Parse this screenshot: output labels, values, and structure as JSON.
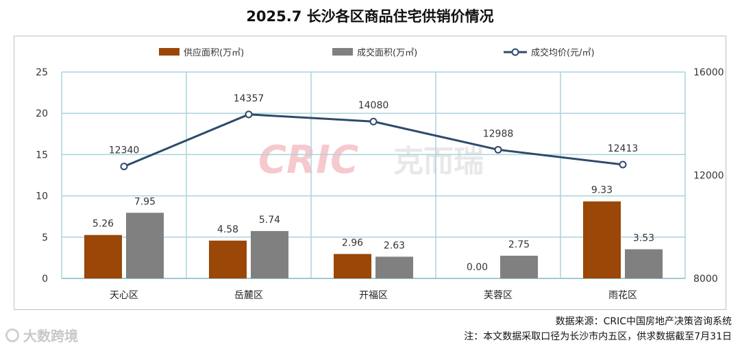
{
  "title": "2025.7 长沙各区商品住宅供销价情况",
  "source_line": "数据来源：CRIC中国房地产决策咨询系统",
  "note_line": "注：本文数据采取口径为长沙市内五区，供求数据截至7月31日",
  "watermark": {
    "brand_en": "CRIC",
    "brand_cn": "克而瑞"
  },
  "brand_footer": "大数跨境",
  "colors": {
    "supply": "#9a4708",
    "deal": "#808080",
    "price": "#2e4a6b",
    "grid": "#a9d3db",
    "watermark": "#f6c9cf"
  },
  "chart_data": {
    "type": "bar",
    "title": "2025.7 长沙各区商品住宅供销价情况",
    "categories": [
      "天心区",
      "岳麓区",
      "开福区",
      "芙蓉区",
      "雨花区"
    ],
    "series": [
      {
        "name": "供应面积(万㎡)",
        "type": "bar",
        "axis": "left",
        "values": [
          5.26,
          4.58,
          2.96,
          0.0,
          9.33
        ],
        "labels": [
          "5.26",
          "4.58",
          "2.96",
          "0.00",
          "9.33"
        ]
      },
      {
        "name": "成交面积(万㎡)",
        "type": "bar",
        "axis": "left",
        "values": [
          7.95,
          5.74,
          2.63,
          2.75,
          3.53
        ],
        "labels": [
          "7.95",
          "5.74",
          "2.63",
          "2.75",
          "3.53"
        ]
      },
      {
        "name": "成交均价(元/㎡)",
        "type": "line",
        "axis": "right",
        "values": [
          12340,
          14357,
          14080,
          12988,
          12413
        ],
        "labels": [
          "12340",
          "14357",
          "14080",
          "12988",
          "12413"
        ]
      }
    ],
    "y_left": {
      "ylim": [
        0,
        25
      ],
      "ticks": [
        "0",
        "5",
        "10",
        "15",
        "20",
        "25"
      ]
    },
    "y_right": {
      "ylim": [
        8000,
        16000
      ],
      "ticks": [
        "8000",
        "12000",
        "16000"
      ]
    },
    "legend_position": "top",
    "grid": true
  }
}
